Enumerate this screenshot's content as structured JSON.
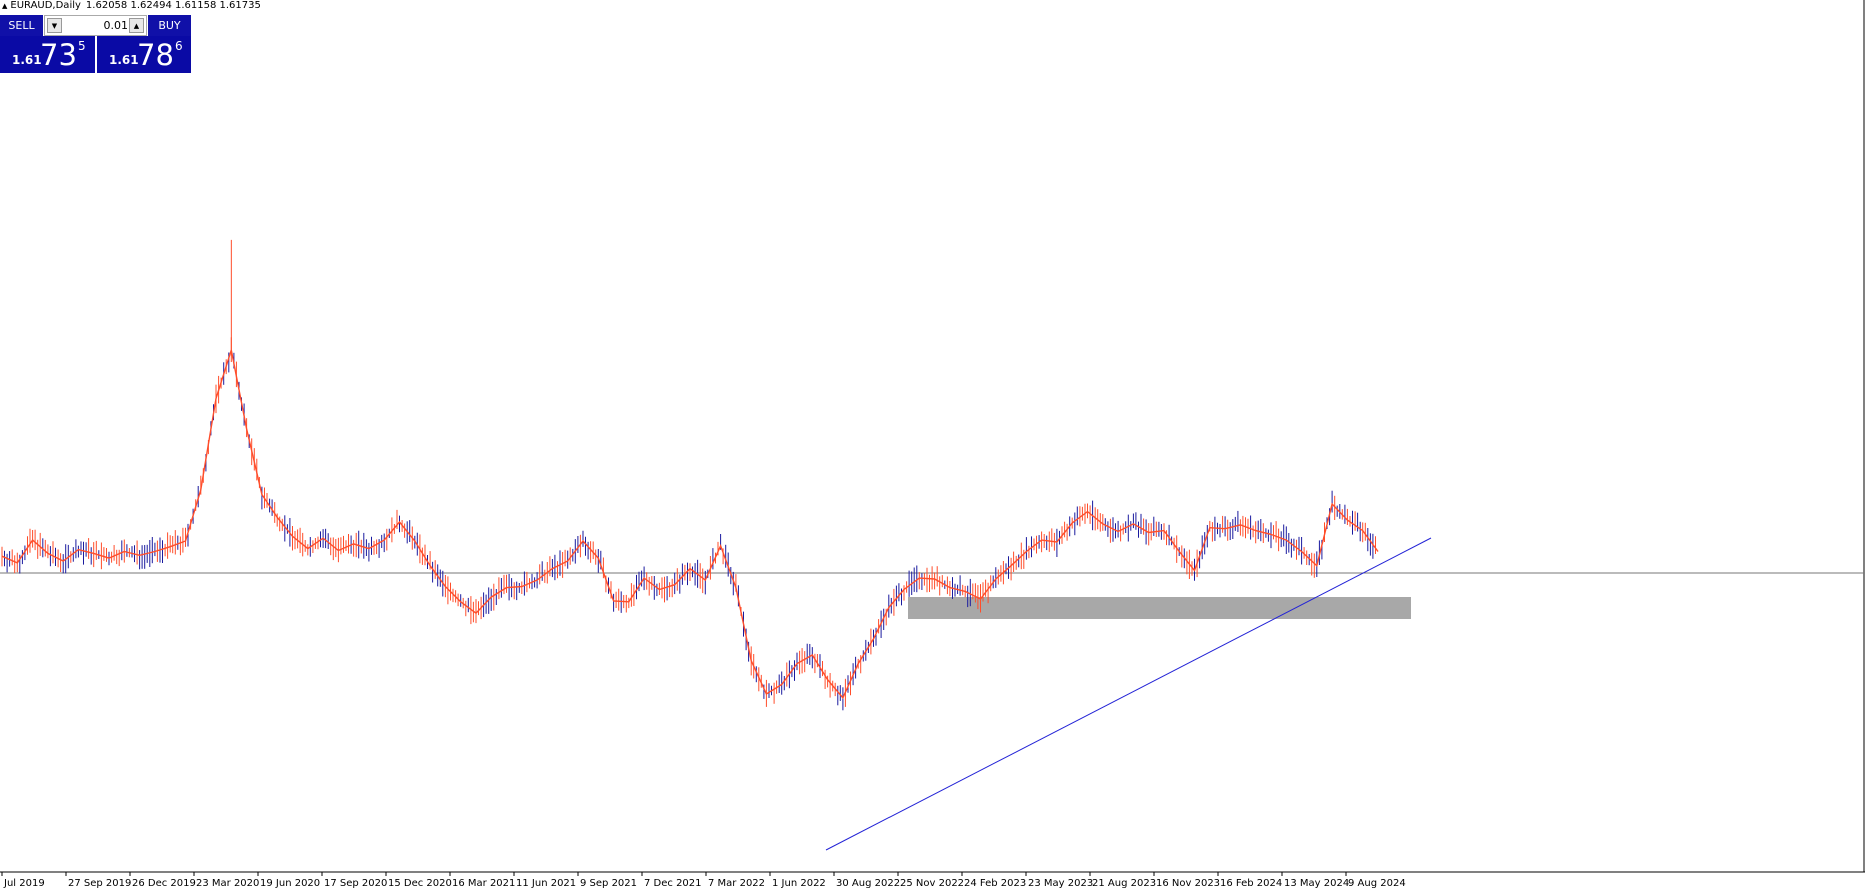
{
  "symbol": "EURAUD,Daily",
  "ohlc": "1.62058 1.62494 1.61158 1.61735",
  "trade_panel": {
    "sell_label": "SELL",
    "buy_label": "BUY",
    "lot": "0.01",
    "sell_price": {
      "prefix": "1.61",
      "big": "73",
      "sup": "5"
    },
    "buy_price": {
      "prefix": "1.61",
      "big": "78",
      "sup": "6"
    }
  },
  "x_axis_labels": [
    "Jul 2019",
    "27 Sep 2019",
    "26 Dec 2019",
    "23 Mar 2020",
    "19 Jun 2020",
    "17 Sep 2020",
    "15 Dec 2020",
    "16 Mar 2021",
    "11 Jun 2021",
    "9 Sep 2021",
    "7 Dec 2021",
    "7 Mar 2022",
    "1 Jun 2022",
    "30 Aug 2022",
    "25 Nov 2022",
    "24 Feb 2023",
    "23 May 2023",
    "21 Aug 2023",
    "16 Nov 2023",
    "16 Feb 2024",
    "13 May 2024",
    "9 Aug 2024"
  ],
  "colors": {
    "bull": "#1a1a9e",
    "bear": "#ff4d2a",
    "trendline": "#2323d6",
    "zone": "#a8a8a8",
    "panel": "#0a0aa5"
  },
  "chart_data": {
    "type": "line",
    "series": [
      {
        "values": [
          1.635,
          1.628,
          1.652,
          1.638,
          1.63,
          1.642,
          1.638,
          1.633,
          1.64,
          1.636,
          1.64,
          1.645,
          1.651,
          1.705,
          1.801,
          1.852,
          1.769,
          1.7,
          1.676,
          1.656,
          1.643,
          1.654,
          1.641,
          1.648,
          1.643,
          1.652,
          1.671,
          1.651,
          1.625,
          1.603,
          1.587,
          1.575,
          1.592,
          1.602,
          1.603,
          1.61,
          1.622,
          1.63,
          1.651,
          1.633,
          1.588,
          1.587,
          1.612,
          1.6,
          1.605,
          1.622,
          1.61,
          1.646,
          1.602,
          1.525,
          1.49,
          1.5,
          1.522,
          1.531,
          1.505,
          1.486,
          1.522,
          1.548,
          1.581,
          1.6,
          1.612,
          1.611,
          1.602,
          1.598,
          1.59,
          1.611,
          1.625,
          1.64,
          1.652,
          1.65,
          1.67,
          1.682,
          1.669,
          1.661,
          1.669,
          1.66,
          1.662,
          1.64,
          1.62,
          1.665,
          1.664,
          1.668,
          1.662,
          1.658,
          1.652,
          1.64,
          1.625,
          1.69,
          1.673,
          1.662,
          1.64
        ]
      }
    ]
  }
}
